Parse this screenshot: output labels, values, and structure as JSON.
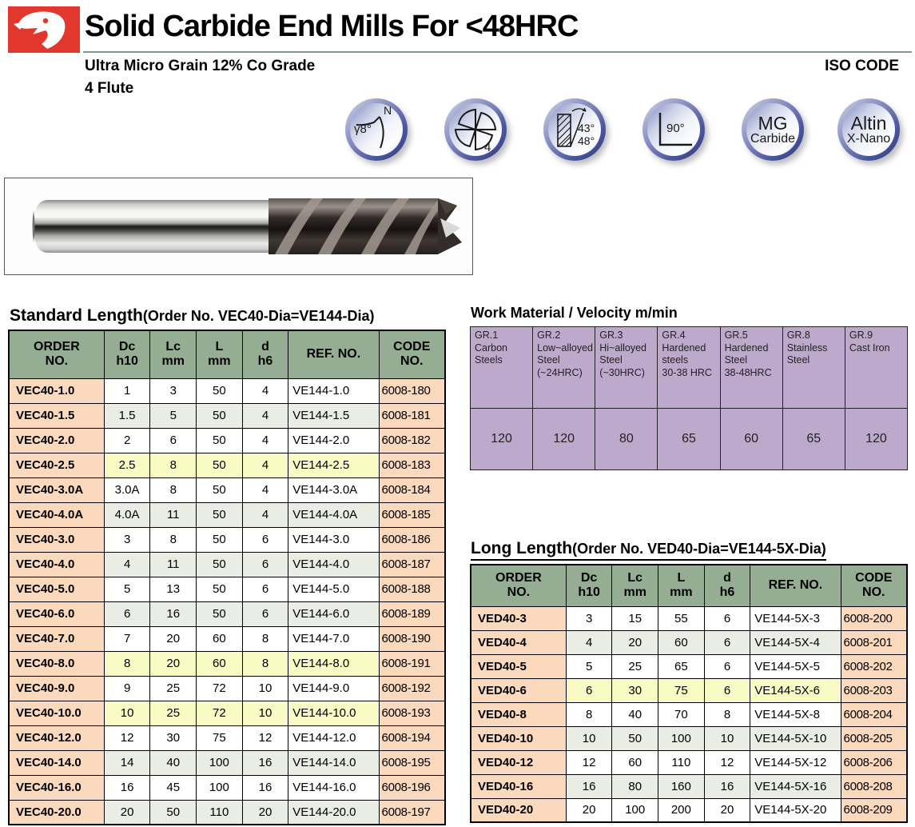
{
  "header": {
    "title": "Solid Carbide End Mills For <48HRC",
    "subtitle_line1": "Ultra Micro Grain 12% Co Grade",
    "subtitle_line2": "4 Flute",
    "iso_code_label": "ISO CODE",
    "logo_color": "#e2372c",
    "rule_color": "#87988e"
  },
  "icons": [
    {
      "name": "rake-angle-icon",
      "letter": "N",
      "angle": "γ8°"
    },
    {
      "name": "flute-count-icon",
      "count": "4"
    },
    {
      "name": "helix-angle-icon",
      "angle1": "43°",
      "angle2": "48°"
    },
    {
      "name": "corner-angle-icon",
      "angle": "90°"
    },
    {
      "name": "carbide-grade-icon",
      "line1": "MG",
      "line2": "Carbide"
    },
    {
      "name": "coating-icon",
      "line1": "Altin",
      "line2": "X-Nano"
    }
  ],
  "standard": {
    "title_main": "Standard Length",
    "title_sub": "(Order No. VEC40-Dia=VE144-Dia)",
    "columns": [
      {
        "lines": [
          "ORDER",
          "NO."
        ]
      },
      {
        "lines": [
          "Dc",
          "h10"
        ]
      },
      {
        "lines": [
          "Lc",
          "mm"
        ]
      },
      {
        "lines": [
          "L",
          "mm"
        ]
      },
      {
        "lines": [
          "d",
          "h6"
        ]
      },
      {
        "lines": [
          "REF. NO."
        ]
      },
      {
        "lines": [
          "CODE",
          "NO."
        ]
      }
    ],
    "rows": [
      {
        "order": "VEC40-1.0",
        "dc": "1",
        "lc": "3",
        "l": "50",
        "d": "4",
        "ref": "VE144-1.0",
        "code": "6008-180",
        "shade": "white"
      },
      {
        "order": "VEC40-1.5",
        "dc": "1.5",
        "lc": "5",
        "l": "50",
        "d": "4",
        "ref": "VE144-1.5",
        "code": "6008-181",
        "shade": "green"
      },
      {
        "order": "VEC40-2.0",
        "dc": "2",
        "lc": "6",
        "l": "50",
        "d": "4",
        "ref": "VE144-2.0",
        "code": "6008-182",
        "shade": "white"
      },
      {
        "order": "VEC40-2.5",
        "dc": "2.5",
        "lc": "8",
        "l": "50",
        "d": "4",
        "ref": "VE144-2.5",
        "code": "6008-183",
        "shade": "yellow"
      },
      {
        "order": "VEC40-3.0A",
        "dc": "3.0A",
        "lc": "8",
        "l": "50",
        "d": "4",
        "ref": "VE144-3.0A",
        "code": "6008-184",
        "shade": "white"
      },
      {
        "order": "VEC40-4.0A",
        "dc": "4.0A",
        "lc": "11",
        "l": "50",
        "d": "4",
        "ref": "VE144-4.0A",
        "code": "6008-185",
        "shade": "green"
      },
      {
        "order": "VEC40-3.0",
        "dc": "3",
        "lc": "8",
        "l": "50",
        "d": "6",
        "ref": "VE144-3.0",
        "code": "6008-186",
        "shade": "white"
      },
      {
        "order": "VEC40-4.0",
        "dc": "4",
        "lc": "11",
        "l": "50",
        "d": "6",
        "ref": "VE144-4.0",
        "code": "6008-187",
        "shade": "green"
      },
      {
        "order": "VEC40-5.0",
        "dc": "5",
        "lc": "13",
        "l": "50",
        "d": "6",
        "ref": "VE144-5.0",
        "code": "6008-188",
        "shade": "white"
      },
      {
        "order": "VEC40-6.0",
        "dc": "6",
        "lc": "16",
        "l": "50",
        "d": "6",
        "ref": "VE144-6.0",
        "code": "6008-189",
        "shade": "green"
      },
      {
        "order": "VEC40-7.0",
        "dc": "7",
        "lc": "20",
        "l": "60",
        "d": "8",
        "ref": "VE144-7.0",
        "code": "6008-190",
        "shade": "white"
      },
      {
        "order": "VEC40-8.0",
        "dc": "8",
        "lc": "20",
        "l": "60",
        "d": "8",
        "ref": "VE144-8.0",
        "code": "6008-191",
        "shade": "yellow"
      },
      {
        "order": "VEC40-9.0",
        "dc": "9",
        "lc": "25",
        "l": "72",
        "d": "10",
        "ref": "VE144-9.0",
        "code": "6008-192",
        "shade": "white"
      },
      {
        "order": "VEC40-10.0",
        "dc": "10",
        "lc": "25",
        "l": "72",
        "d": "10",
        "ref": "VE144-10.0",
        "code": "6008-193",
        "shade": "yellow"
      },
      {
        "order": "VEC40-12.0",
        "dc": "12",
        "lc": "30",
        "l": "75",
        "d": "12",
        "ref": "VE144-12.0",
        "code": "6008-194",
        "shade": "white"
      },
      {
        "order": "VEC40-14.0",
        "dc": "14",
        "lc": "40",
        "l": "100",
        "d": "16",
        "ref": "VE144-14.0",
        "code": "6008-195",
        "shade": "green"
      },
      {
        "order": "VEC40-16.0",
        "dc": "16",
        "lc": "45",
        "l": "100",
        "d": "16",
        "ref": "VE144-16.0",
        "code": "6008-196",
        "shade": "white"
      },
      {
        "order": "VEC40-20.0",
        "dc": "20",
        "lc": "50",
        "l": "110",
        "d": "20",
        "ref": "VE144-20.0",
        "code": "6008-197",
        "shade": "green"
      }
    ]
  },
  "work_material": {
    "title": "Work Material / Velocity m/min",
    "columns": [
      {
        "gr": "GR.1",
        "lines": [
          "Carbon",
          "Steels"
        ]
      },
      {
        "gr": "GR.2",
        "lines": [
          "Low~alloyed",
          "Steel",
          "(~24HRC)"
        ]
      },
      {
        "gr": "GR.3",
        "lines": [
          "Hi~alloyed",
          "Steel",
          "(~30HRC)"
        ]
      },
      {
        "gr": "GR.4",
        "lines": [
          "Hardened",
          "steels",
          "30-38 HRC"
        ]
      },
      {
        "gr": "GR.5",
        "lines": [
          "Hardened",
          "Steel",
          "38-48HRC"
        ]
      },
      {
        "gr": "GR.8",
        "lines": [
          "Stainless",
          "Steel"
        ]
      },
      {
        "gr": "GR.9",
        "lines": [
          "Cast Iron"
        ]
      }
    ],
    "values": [
      "120",
      "120",
      "80",
      "65",
      "60",
      "65",
      "120"
    ]
  },
  "long": {
    "title_main": "Long Length",
    "title_sub": "(Order No. VED40-Dia=VE144-5X-Dia)",
    "columns": [
      {
        "lines": [
          "ORDER",
          "NO."
        ]
      },
      {
        "lines": [
          "Dc",
          "h10"
        ]
      },
      {
        "lines": [
          "Lc",
          "mm"
        ]
      },
      {
        "lines": [
          "L",
          "mm"
        ]
      },
      {
        "lines": [
          "d",
          "h6"
        ]
      },
      {
        "lines": [
          "REF. NO."
        ]
      },
      {
        "lines": [
          "CODE",
          "NO."
        ]
      }
    ],
    "rows": [
      {
        "order": "VED40-3",
        "dc": "3",
        "lc": "15",
        "l": "55",
        "d": "6",
        "ref": "VE144-5X-3",
        "code": "6008-200",
        "shade": "white"
      },
      {
        "order": "VED40-4",
        "dc": "4",
        "lc": "20",
        "l": "60",
        "d": "6",
        "ref": "VE144-5X-4",
        "code": "6008-201",
        "shade": "green"
      },
      {
        "order": "VED40-5",
        "dc": "5",
        "lc": "25",
        "l": "65",
        "d": "6",
        "ref": "VE144-5X-5",
        "code": "6008-202",
        "shade": "white"
      },
      {
        "order": "VED40-6",
        "dc": "6",
        "lc": "30",
        "l": "75",
        "d": "6",
        "ref": "VE144-5X-6",
        "code": "6008-203",
        "shade": "yellow"
      },
      {
        "order": "VED40-8",
        "dc": "8",
        "lc": "40",
        "l": "70",
        "d": "8",
        "ref": "VE144-5X-8",
        "code": "6008-204",
        "shade": "white"
      },
      {
        "order": "VED40-10",
        "dc": "10",
        "lc": "50",
        "l": "100",
        "d": "10",
        "ref": "VE144-5X-10",
        "code": "6008-205",
        "shade": "green"
      },
      {
        "order": "VED40-12",
        "dc": "12",
        "lc": "60",
        "l": "110",
        "d": "12",
        "ref": "VE144-5X-12",
        "code": "6008-206",
        "shade": "white"
      },
      {
        "order": "VED40-16",
        "dc": "16",
        "lc": "80",
        "l": "160",
        "d": "16",
        "ref": "VE144-5X-16",
        "code": "6008-208",
        "shade": "green"
      },
      {
        "order": "VED40-20",
        "dc": "20",
        "lc": "100",
        "l": "200",
        "d": "20",
        "ref": "VE144-5X-20",
        "code": "6008-209",
        "shade": "white"
      }
    ]
  }
}
